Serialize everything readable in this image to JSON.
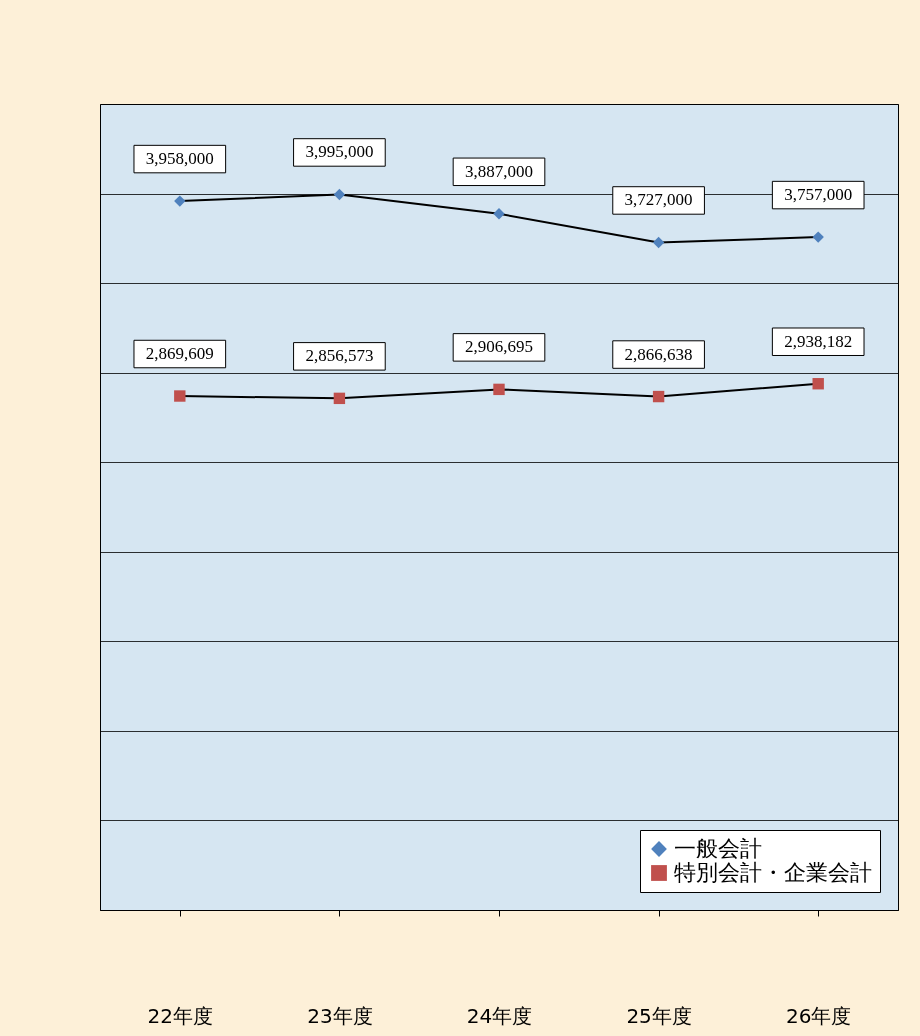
{
  "chart_data": {
    "type": "line",
    "categories": [
      "22年度",
      "23年度",
      "24年度",
      "25年度",
      "26年度"
    ],
    "series": [
      {
        "name": "一般会計",
        "color": "#4f81bd",
        "marker": "diamond",
        "values": [
          3958000,
          3995000,
          3887000,
          3727000,
          3757000
        ],
        "value_labels": [
          "3,958,000",
          "3,995,000",
          "3,887,000",
          "3,727,000",
          "3,757,000"
        ]
      },
      {
        "name": "特別会計・企業会計",
        "color": "#c0504d",
        "marker": "square",
        "values": [
          2869609,
          2856573,
          2906695,
          2866638,
          2938182
        ],
        "value_labels": [
          "2,869,609",
          "2,856,573",
          "2,906,695",
          "2,866,638",
          "2,938,182"
        ]
      }
    ],
    "ylim": [
      0,
      4500000
    ],
    "yticks": [
      {
        "value": 0,
        "label": null
      },
      {
        "value": 500000,
        "label": null
      },
      {
        "value": 1000000,
        "label": null
      },
      {
        "value": 1500000,
        "label": null
      },
      {
        "value": 2000000,
        "label": null
      },
      {
        "value": 2500000,
        "label": null
      },
      {
        "value": 3000000,
        "label": null
      },
      {
        "value": 3500000,
        "label": null
      },
      {
        "value": 4000000,
        "label": null
      },
      {
        "value": 4500000,
        "label": null
      }
    ],
    "tick_labels": "x",
    "grid": "y",
    "legend": "bottom right",
    "line_style": "solid"
  }
}
